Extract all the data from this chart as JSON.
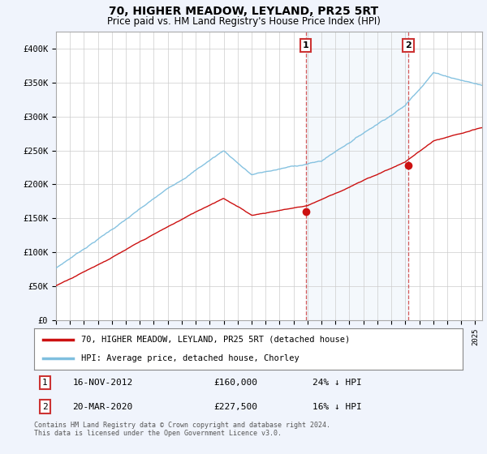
{
  "title": "70, HIGHER MEADOW, LEYLAND, PR25 5RT",
  "subtitle": "Price paid vs. HM Land Registry's House Price Index (HPI)",
  "title_fontsize": 10,
  "subtitle_fontsize": 8.5,
  "hpi_color": "#7fbfdf",
  "price_color": "#cc1111",
  "background_color": "#f0f4fc",
  "plot_bg": "#ffffff",
  "ylim": [
    0,
    420000
  ],
  "yticks": [
    0,
    50000,
    100000,
    150000,
    200000,
    250000,
    300000,
    350000,
    400000
  ],
  "ytick_labels": [
    "£0",
    "£50K",
    "£100K",
    "£150K",
    "£200K",
    "£250K",
    "£300K",
    "£350K",
    "£400K"
  ],
  "sale1_date": "16-NOV-2012",
  "sale1_price": 160000,
  "sale1_pct": "24% ↓ HPI",
  "sale1_label": "1",
  "sale1_x_year": 2012.88,
  "sale2_date": "20-MAR-2020",
  "sale2_price": 227500,
  "sale2_pct": "16% ↓ HPI",
  "sale2_label": "2",
  "sale2_x_year": 2020.22,
  "legend_line1": "70, HIGHER MEADOW, LEYLAND, PR25 5RT (detached house)",
  "legend_line2": "HPI: Average price, detached house, Chorley",
  "footnote": "Contains HM Land Registry data © Crown copyright and database right 2024.\nThis data is licensed under the Open Government Licence v3.0.",
  "xmin": 1995.0,
  "xmax": 2025.5
}
